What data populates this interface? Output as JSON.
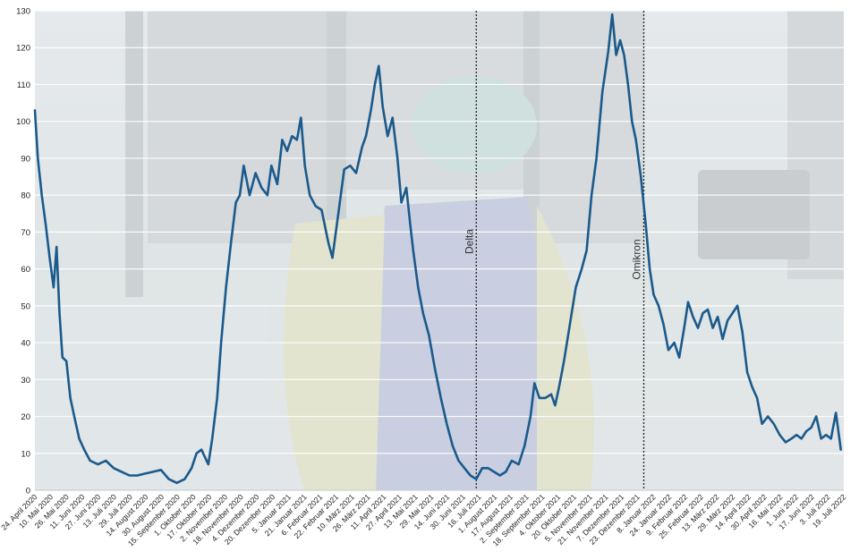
{
  "chart_data": {
    "type": "line",
    "title": "",
    "xlabel": "",
    "ylabel": "",
    "ylim": [
      0,
      130
    ],
    "yticks": [
      0,
      10,
      20,
      30,
      40,
      50,
      60,
      70,
      80,
      90,
      100,
      110,
      120,
      130
    ],
    "grid": true,
    "legend": "none",
    "x_range": [
      "2020-04-24",
      "2022-07-24"
    ],
    "x_tick_labels": [
      "24. April 2020",
      "10. Mai 2020",
      "26. Mai 2020",
      "11. Juni 2020",
      "27. Juni 2020",
      "13. Juli 2020",
      "29. Juli 2020",
      "14. August 2020",
      "30. August 2020",
      "15. September 2020",
      "1. Oktober 2020",
      "17. Oktober 2020",
      "2. November 2020",
      "18. November 2020",
      "4. Dezember 2020",
      "20. Dezember 2020",
      "5. Januar 2021",
      "21. Januar 2021",
      "6. Februar 2021",
      "22. Februar 2021",
      "10. März 2021",
      "26. März 2021",
      "11. April 2021",
      "27. April 2021",
      "13. Mai 2021",
      "29. Mai 2021",
      "14. Juni 2021",
      "30. Juni 2021",
      "16. Juli 2021",
      "1. August 2021",
      "17. August 2021",
      "2. September 2021",
      "18. September 2021",
      "4. Oktober 2021",
      "20. Oktober 2021",
      "5. November 2021",
      "21. November 2021",
      "7. Dezember 2021",
      "23. Dezember 2021",
      "8. Januar 2022",
      "24. Januar 2022",
      "9. Februar 2022",
      "25. Februar 2022",
      "13. März 2022",
      "29. März 2022",
      "14. April 2022",
      "30. April 2022",
      "16. Mai 2022",
      "1. Juni 2022",
      "17. Juni 2022",
      "3. Juli 2022",
      "19. Juli 2022"
    ],
    "series": [
      {
        "color": "#1a5a8c",
        "points": [
          [
            "2020-04-24",
            103
          ],
          [
            "2020-04-27",
            90
          ],
          [
            "2020-05-01",
            80
          ],
          [
            "2020-05-05",
            72
          ],
          [
            "2020-05-09",
            63
          ],
          [
            "2020-05-13",
            55
          ],
          [
            "2020-05-16",
            66
          ],
          [
            "2020-05-19",
            48
          ],
          [
            "2020-05-22",
            36
          ],
          [
            "2020-05-26",
            35
          ],
          [
            "2020-05-30",
            25
          ],
          [
            "2020-06-03",
            20
          ],
          [
            "2020-06-08",
            14
          ],
          [
            "2020-06-13",
            11
          ],
          [
            "2020-06-19",
            8
          ],
          [
            "2020-06-27",
            7
          ],
          [
            "2020-07-05",
            8
          ],
          [
            "2020-07-13",
            6
          ],
          [
            "2020-07-21",
            5
          ],
          [
            "2020-07-29",
            4
          ],
          [
            "2020-08-06",
            4
          ],
          [
            "2020-08-14",
            4.5
          ],
          [
            "2020-08-22",
            5
          ],
          [
            "2020-08-30",
            5.5
          ],
          [
            "2020-09-07",
            3
          ],
          [
            "2020-09-15",
            2
          ],
          [
            "2020-09-23",
            3
          ],
          [
            "2020-09-30",
            6
          ],
          [
            "2020-10-05",
            10
          ],
          [
            "2020-10-10",
            11
          ],
          [
            "2020-10-17",
            7
          ],
          [
            "2020-10-21",
            14
          ],
          [
            "2020-10-26",
            25
          ],
          [
            "2020-10-30",
            40
          ],
          [
            "2020-11-04",
            55
          ],
          [
            "2020-11-09",
            67
          ],
          [
            "2020-11-14",
            78
          ],
          [
            "2020-11-18",
            80
          ],
          [
            "2020-11-22",
            88
          ],
          [
            "2020-11-28",
            80
          ],
          [
            "2020-12-04",
            86
          ],
          [
            "2020-12-10",
            82
          ],
          [
            "2020-12-16",
            80
          ],
          [
            "2020-12-20",
            88
          ],
          [
            "2020-12-26",
            83
          ],
          [
            "2020-12-31",
            95
          ],
          [
            "2021-01-05",
            92
          ],
          [
            "2021-01-10",
            96
          ],
          [
            "2021-01-15",
            95
          ],
          [
            "2021-01-19",
            101
          ],
          [
            "2021-01-23",
            88
          ],
          [
            "2021-01-28",
            80
          ],
          [
            "2021-02-03",
            77
          ],
          [
            "2021-02-09",
            76
          ],
          [
            "2021-02-16",
            67
          ],
          [
            "2021-02-20",
            63
          ],
          [
            "2021-02-26",
            75
          ],
          [
            "2021-03-04",
            87
          ],
          [
            "2021-03-10",
            88
          ],
          [
            "2021-03-16",
            86
          ],
          [
            "2021-03-22",
            93
          ],
          [
            "2021-03-26",
            96
          ],
          [
            "2021-03-31",
            103
          ],
          [
            "2021-04-04",
            110
          ],
          [
            "2021-04-08",
            115
          ],
          [
            "2021-04-12",
            104
          ],
          [
            "2021-04-17",
            96
          ],
          [
            "2021-04-22",
            101
          ],
          [
            "2021-04-27",
            90
          ],
          [
            "2021-05-01",
            78
          ],
          [
            "2021-05-06",
            82
          ],
          [
            "2021-05-10",
            72
          ],
          [
            "2021-05-13",
            65
          ],
          [
            "2021-05-18",
            55
          ],
          [
            "2021-05-23",
            48
          ],
          [
            "2021-05-29",
            42
          ],
          [
            "2021-06-04",
            33
          ],
          [
            "2021-06-10",
            25
          ],
          [
            "2021-06-16",
            18
          ],
          [
            "2021-06-22",
            12
          ],
          [
            "2021-06-28",
            8
          ],
          [
            "2021-07-04",
            6
          ],
          [
            "2021-07-10",
            4
          ],
          [
            "2021-07-16",
            3
          ],
          [
            "2021-07-22",
            6
          ],
          [
            "2021-07-28",
            6
          ],
          [
            "2021-08-03",
            5
          ],
          [
            "2021-08-09",
            4
          ],
          [
            "2021-08-15",
            5
          ],
          [
            "2021-08-21",
            8
          ],
          [
            "2021-08-28",
            7
          ],
          [
            "2021-09-03",
            12
          ],
          [
            "2021-09-09",
            20
          ],
          [
            "2021-09-13",
            29
          ],
          [
            "2021-09-18",
            25
          ],
          [
            "2021-09-24",
            25
          ],
          [
            "2021-09-30",
            26
          ],
          [
            "2021-10-04",
            23
          ],
          [
            "2021-10-08",
            28
          ],
          [
            "2021-10-13",
            35
          ],
          [
            "2021-10-19",
            45
          ],
          [
            "2021-10-25",
            55
          ],
          [
            "2021-10-31",
            60
          ],
          [
            "2021-11-05",
            65
          ],
          [
            "2021-11-10",
            80
          ],
          [
            "2021-11-15",
            90
          ],
          [
            "2021-11-21",
            108
          ],
          [
            "2021-11-27",
            119
          ],
          [
            "2021-12-01",
            129
          ],
          [
            "2021-12-05",
            118
          ],
          [
            "2021-12-09",
            122
          ],
          [
            "2021-12-13",
            118
          ],
          [
            "2021-12-17",
            110
          ],
          [
            "2021-12-21",
            100
          ],
          [
            "2021-12-25",
            95
          ],
          [
            "2021-12-30",
            85
          ],
          [
            "2022-01-04",
            72
          ],
          [
            "2022-01-08",
            60
          ],
          [
            "2022-01-12",
            53
          ],
          [
            "2022-01-17",
            50
          ],
          [
            "2022-01-22",
            45
          ],
          [
            "2022-01-27",
            38
          ],
          [
            "2022-02-02",
            40
          ],
          [
            "2022-02-07",
            36
          ],
          [
            "2022-02-12",
            44
          ],
          [
            "2022-02-16",
            51
          ],
          [
            "2022-02-21",
            47
          ],
          [
            "2022-02-26",
            44
          ],
          [
            "2022-03-03",
            48
          ],
          [
            "2022-03-08",
            49
          ],
          [
            "2022-03-13",
            44
          ],
          [
            "2022-03-18",
            47
          ],
          [
            "2022-03-23",
            41
          ],
          [
            "2022-03-28",
            46
          ],
          [
            "2022-04-02",
            48
          ],
          [
            "2022-04-07",
            50
          ],
          [
            "2022-04-12",
            43
          ],
          [
            "2022-04-17",
            32
          ],
          [
            "2022-04-22",
            28
          ],
          [
            "2022-04-27",
            25
          ],
          [
            "2022-05-02",
            18
          ],
          [
            "2022-05-08",
            20
          ],
          [
            "2022-05-14",
            18
          ],
          [
            "2022-05-20",
            15
          ],
          [
            "2022-05-26",
            13
          ],
          [
            "2022-06-01",
            14
          ],
          [
            "2022-06-06",
            15
          ],
          [
            "2022-06-11",
            14
          ],
          [
            "2022-06-16",
            16
          ],
          [
            "2022-06-21",
            17
          ],
          [
            "2022-06-26",
            20
          ],
          [
            "2022-07-01",
            14
          ],
          [
            "2022-07-06",
            15
          ],
          [
            "2022-07-11",
            14
          ],
          [
            "2022-07-16",
            21
          ],
          [
            "2022-07-21",
            11
          ]
        ]
      }
    ],
    "annotations": [
      {
        "label": "Delta",
        "x": "2021-07-16"
      },
      {
        "label": "Omikron",
        "x": "2022-01-02"
      }
    ]
  }
}
